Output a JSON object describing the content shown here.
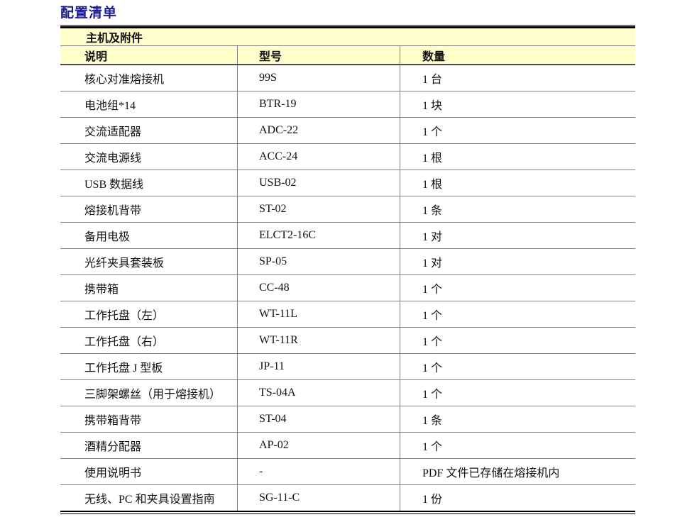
{
  "page": {
    "title": "配置清单",
    "title_color": "#1b1b8e"
  },
  "table": {
    "section_header": "主机及附件",
    "columns": {
      "desc": "说明",
      "model": "型号",
      "qty": "数量"
    },
    "header_bg": "#FFFFCC",
    "line_color": "#808080",
    "rows": [
      {
        "desc": "核心对准熔接机",
        "model": "99S",
        "qty": "1 台"
      },
      {
        "desc": "电池组*14",
        "model": "BTR-19",
        "qty": "1 块"
      },
      {
        "desc": "交流适配器",
        "model": "ADC-22",
        "qty": "1 个"
      },
      {
        "desc": "交流电源线",
        "model": "ACC-24",
        "qty": "1 根"
      },
      {
        "desc": "USB 数据线",
        "model": "USB-02",
        "qty": "1 根"
      },
      {
        "desc": "熔接机背带",
        "model": "ST-02",
        "qty": "1 条"
      },
      {
        "desc": "备用电极",
        "model": "ELCT2-16C",
        "qty": "1 对"
      },
      {
        "desc": "光纤夹具套装板",
        "model": "SP-05",
        "qty": "1 对"
      },
      {
        "desc": "携带箱",
        "model": "CC-48",
        "qty": "1 个"
      },
      {
        "desc": "工作托盘（左）",
        "model": "WT-11L",
        "qty": "1 个"
      },
      {
        "desc": "工作托盘（右）",
        "model": "WT-11R",
        "qty": "1 个"
      },
      {
        "desc": "工作托盘 J 型板",
        "model": "JP-11",
        "qty": "1 个"
      },
      {
        "desc": "三脚架螺丝（用于熔接机）",
        "model": "TS-04A",
        "qty": "1 个"
      },
      {
        "desc": "携带箱背带",
        "model": "ST-04",
        "qty": "1 条"
      },
      {
        "desc": "酒精分配器",
        "model": "AP-02",
        "qty": "1 个"
      },
      {
        "desc": "使用说明书",
        "model": "-",
        "qty": "PDF 文件已存储在熔接机内"
      },
      {
        "desc": "无线、PC 和夹具设置指南",
        "model": "SG-11-C",
        "qty": "1 份"
      }
    ]
  }
}
